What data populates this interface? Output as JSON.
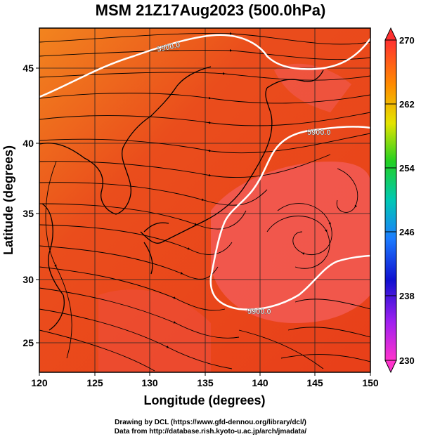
{
  "title": "MSM 21Z17Aug2023 (500.0hPa)",
  "x_axis": {
    "label": "Longitude (degrees)",
    "ticks": [
      "120",
      "125",
      "130",
      "135",
      "140",
      "145",
      "150"
    ]
  },
  "y_axis": {
    "label": "Latitude  (degrees)",
    "ticks": [
      "25",
      "30",
      "35",
      "40",
      "45"
    ]
  },
  "colorbar": {
    "ticks": [
      "270",
      "262",
      "254",
      "246",
      "238",
      "230"
    ],
    "min": 230,
    "max": 270
  },
  "contours": [
    {
      "label": "5900.0"
    },
    {
      "label": "5900.0"
    },
    {
      "label": "5900.0"
    }
  ],
  "credits": {
    "line1": "Drawing by DCL (https://www.gfd-dennou.org/library/dcl/)",
    "line2": "Data from http://database.rish.kyoto-u.ac.jp/arch/jmadata/"
  },
  "colors": {
    "field_warm": "#e8431a",
    "field_hot": "#f25a55",
    "field_orange": "#f2841e",
    "contour": "#ffffff",
    "coast": "#000000"
  }
}
